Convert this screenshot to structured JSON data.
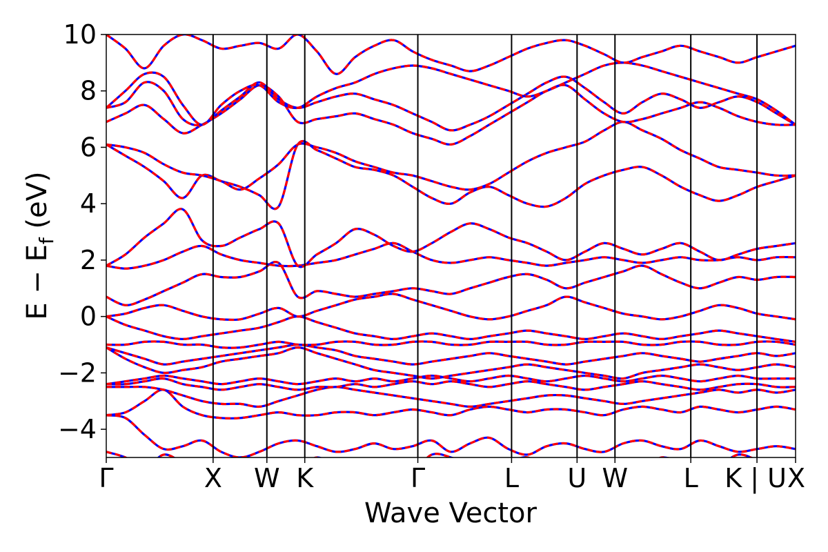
{
  "chart_data": {
    "type": "line",
    "title": "",
    "xlabel": "Wave Vector",
    "ylabel_main": "E − E",
    "ylabel_sub": "f",
    "ylabel_unit": " (eV)",
    "ylim": [
      -5,
      10
    ],
    "xlim": [
      0,
      1
    ],
    "grid": false,
    "legend": "none",
    "y_ticks": [
      {
        "value": -4,
        "label": "−4"
      },
      {
        "value": -2,
        "label": "−2"
      },
      {
        "value": 0,
        "label": "0"
      },
      {
        "value": 2,
        "label": "2"
      },
      {
        "value": 4,
        "label": "4"
      },
      {
        "value": 6,
        "label": "6"
      },
      {
        "value": 8,
        "label": "8"
      },
      {
        "value": 10,
        "label": "10"
      }
    ],
    "high_symmetry_points": [
      {
        "x": 0.0,
        "label": "Γ"
      },
      {
        "x": 0.155,
        "label": "X"
      },
      {
        "x": 0.233,
        "label": "W"
      },
      {
        "x": 0.288,
        "label": "K"
      },
      {
        "x": 0.452,
        "label": "Γ"
      },
      {
        "x": 0.588,
        "label": "L"
      },
      {
        "x": 0.683,
        "label": "U"
      },
      {
        "x": 0.738,
        "label": "W"
      },
      {
        "x": 0.848,
        "label": "L"
      },
      {
        "x": 0.944,
        "label": "K | U"
      },
      {
        "x": 1.0,
        "label": "X"
      }
    ],
    "series_styles": [
      {
        "color": "#0000ff",
        "dash": "solid",
        "width": 3.2
      },
      {
        "color": "#ff0000",
        "dash": "8,5",
        "width": 3.2
      }
    ],
    "bands": [
      [
        -4.8,
        -5.0,
        -5.4,
        -4.9,
        -5.2,
        -5.6,
        -5.4,
        -5.0,
        -5.2,
        -5.6,
        -5.4,
        -5.0,
        -5.3,
        -5.2,
        -5.1,
        -5.3,
        -5.5,
        -4.9,
        -5.0,
        -5.3,
        -5.6,
        -5.2,
        -5.0,
        -5.4,
        -5.5,
        -5.3,
        -5.1,
        -5.2,
        -5.4,
        -5.0,
        -5.2,
        -5.5,
        -5.3,
        -4.9,
        -5.1,
        -5.4,
        -5.2
      ],
      [
        -3.5,
        -3.6,
        -4.2,
        -4.7,
        -4.6,
        -4.4,
        -4.8,
        -5.0,
        -4.8,
        -4.5,
        -4.4,
        -4.6,
        -4.8,
        -4.7,
        -4.5,
        -4.7,
        -4.6,
        -4.4,
        -4.8,
        -4.5,
        -4.3,
        -4.7,
        -4.9,
        -4.6,
        -4.5,
        -4.7,
        -4.8,
        -4.5,
        -4.4,
        -4.6,
        -4.7,
        -4.4,
        -4.6,
        -4.8,
        -4.7,
        -4.6,
        -4.7
      ],
      [
        -3.5,
        -3.4,
        -3.0,
        -2.6,
        -3.2,
        -3.5,
        -3.6,
        -3.6,
        -3.5,
        -3.4,
        -3.5,
        -3.5,
        -3.4,
        -3.4,
        -3.5,
        -3.4,
        -3.3,
        -3.4,
        -3.5,
        -3.3,
        -3.2,
        -3.3,
        -3.4,
        -3.3,
        -3.3,
        -3.4,
        -3.5,
        -3.3,
        -3.2,
        -3.3,
        -3.4,
        -3.2,
        -3.3,
        -3.4,
        -3.3,
        -3.2,
        -3.3
      ],
      [
        -2.5,
        -2.5,
        -2.5,
        -2.6,
        -2.8,
        -3.0,
        -3.1,
        -3.1,
        -3.2,
        -3.0,
        -2.8,
        -2.6,
        -2.5,
        -2.6,
        -2.7,
        -2.8,
        -2.9,
        -3.0,
        -3.1,
        -3.2,
        -3.1,
        -3.0,
        -2.9,
        -2.8,
        -2.8,
        -2.9,
        -3.0,
        -3.1,
        -3.0,
        -2.9,
        -2.8,
        -2.7,
        -2.6,
        -2.7,
        -2.6,
        -2.7,
        -2.6
      ],
      [
        -2.4,
        -2.4,
        -2.3,
        -2.2,
        -2.4,
        -2.5,
        -2.6,
        -2.5,
        -2.4,
        -2.5,
        -2.6,
        -2.5,
        -2.5,
        -2.4,
        -2.5,
        -2.4,
        -2.3,
        -2.4,
        -2.3,
        -2.4,
        -2.5,
        -2.4,
        -2.3,
        -2.4,
        -2.5,
        -2.6,
        -2.5,
        -2.4,
        -2.3,
        -2.4,
        -2.5,
        -2.6,
        -2.5,
        -2.4,
        -2.4,
        -2.5,
        -2.5
      ],
      [
        -2.4,
        -2.3,
        -2.2,
        -2.1,
        -2.2,
        -2.3,
        -2.4,
        -2.3,
        -2.2,
        -2.3,
        -2.4,
        -2.3,
        -2.2,
        -2.3,
        -2.2,
        -2.3,
        -2.2,
        -2.1,
        -2.2,
        -2.3,
        -2.2,
        -2.1,
        -2.2,
        -2.3,
        -2.2,
        -2.1,
        -2.2,
        -2.3,
        -2.2,
        -2.1,
        -2.2,
        -2.3,
        -2.2,
        -2.1,
        -2.2,
        -2.2,
        -2.2
      ],
      [
        -1.1,
        -1.5,
        -1.8,
        -2.0,
        -1.9,
        -1.8,
        -1.6,
        -1.5,
        -1.4,
        -1.3,
        -1.1,
        -1.3,
        -1.5,
        -1.7,
        -1.9,
        -2.0,
        -2.1,
        -2.2,
        -2.1,
        -2.0,
        -1.9,
        -1.8,
        -1.7,
        -1.8,
        -1.9,
        -2.0,
        -2.1,
        -2.2,
        -2.0,
        -1.9,
        -1.8,
        -1.7,
        -1.8,
        -1.9,
        -1.8,
        -1.7,
        -1.8
      ],
      [
        -1.1,
        -1.3,
        -1.5,
        -1.7,
        -1.6,
        -1.5,
        -1.4,
        -1.3,
        -1.2,
        -1.1,
        -1.0,
        -1.1,
        -1.2,
        -1.4,
        -1.5,
        -1.6,
        -1.7,
        -1.6,
        -1.5,
        -1.4,
        -1.3,
        -1.4,
        -1.5,
        -1.6,
        -1.7,
        -1.6,
        -1.5,
        -1.4,
        -1.3,
        -1.4,
        -1.5,
        -1.6,
        -1.5,
        -1.4,
        -1.3,
        -1.4,
        -1.3
      ],
      [
        -1.0,
        -1.0,
        -0.9,
        -0.9,
        -1.0,
        -1.0,
        -1.1,
        -1.1,
        -1.0,
        -0.9,
        -1.0,
        -1.0,
        -0.9,
        -0.9,
        -1.0,
        -1.0,
        -0.9,
        -0.9,
        -1.0,
        -1.0,
        -0.9,
        -0.9,
        -0.9,
        -1.0,
        -1.0,
        -0.9,
        -0.9,
        -0.9,
        -1.0,
        -1.0,
        -0.9,
        -0.9,
        -1.0,
        -1.0,
        -0.9,
        -0.9,
        -1.0
      ],
      [
        0.0,
        -0.3,
        -0.5,
        -0.7,
        -0.8,
        -0.7,
        -0.6,
        -0.5,
        -0.4,
        -0.2,
        0.0,
        -0.2,
        -0.4,
        -0.6,
        -0.7,
        -0.8,
        -0.7,
        -0.6,
        -0.7,
        -0.8,
        -0.7,
        -0.6,
        -0.5,
        -0.6,
        -0.7,
        -0.8,
        -0.7,
        -0.6,
        -0.7,
        -0.8,
        -0.7,
        -0.6,
        -0.5,
        -0.6,
        -0.7,
        -0.8,
        -0.9
      ],
      [
        0.0,
        0.1,
        0.3,
        0.4,
        0.2,
        0.0,
        -0.1,
        -0.1,
        0.1,
        0.3,
        0.0,
        0.2,
        0.4,
        0.6,
        0.7,
        0.8,
        0.6,
        0.4,
        0.2,
        0.0,
        -0.1,
        0.0,
        0.2,
        0.4,
        0.7,
        0.5,
        0.3,
        0.1,
        0.0,
        -0.1,
        0.0,
        0.2,
        0.4,
        0.3,
        0.1,
        0.0,
        -0.1
      ],
      [
        0.7,
        0.4,
        0.6,
        0.9,
        1.2,
        1.5,
        1.4,
        1.4,
        1.6,
        1.9,
        0.7,
        0.9,
        0.8,
        0.7,
        0.8,
        0.9,
        1.0,
        0.9,
        0.8,
        1.0,
        1.2,
        1.4,
        1.5,
        1.3,
        1.0,
        1.2,
        1.4,
        1.6,
        1.8,
        1.5,
        1.2,
        1.0,
        1.2,
        1.4,
        1.3,
        1.4,
        1.4
      ],
      [
        1.8,
        1.7,
        1.8,
        2.0,
        2.3,
        2.5,
        2.2,
        2.0,
        1.9,
        1.8,
        1.8,
        1.9,
        2.0,
        2.2,
        2.4,
        2.6,
        2.3,
        2.0,
        1.9,
        2.0,
        2.1,
        2.0,
        1.9,
        1.8,
        1.9,
        2.0,
        2.1,
        2.0,
        1.9,
        2.0,
        2.1,
        2.0,
        2.0,
        2.1,
        2.0,
        2.1,
        2.1
      ],
      [
        1.8,
        2.2,
        2.8,
        3.3,
        3.8,
        2.7,
        2.5,
        2.8,
        3.1,
        3.3,
        1.8,
        2.2,
        2.6,
        3.1,
        2.9,
        2.5,
        2.3,
        2.6,
        3.0,
        3.3,
        3.1,
        2.8,
        2.6,
        2.3,
        2.0,
        2.3,
        2.6,
        2.4,
        2.2,
        2.4,
        2.6,
        2.3,
        2.0,
        2.2,
        2.4,
        2.5,
        2.6
      ],
      [
        6.1,
        5.7,
        5.3,
        4.8,
        4.2,
        5.0,
        4.8,
        4.6,
        4.3,
        3.9,
        6.1,
        5.9,
        5.6,
        5.3,
        5.2,
        5.0,
        4.6,
        4.2,
        4.0,
        4.4,
        4.6,
        4.3,
        4.0,
        3.9,
        4.2,
        4.7,
        5.0,
        5.2,
        5.3,
        5.0,
        4.6,
        4.3,
        4.1,
        4.3,
        4.6,
        4.8,
        5.0
      ],
      [
        6.1,
        6.0,
        5.8,
        5.4,
        5.1,
        5.0,
        4.8,
        4.5,
        4.9,
        5.4,
        6.1,
        6.0,
        5.8,
        5.5,
        5.3,
        5.1,
        5.0,
        4.8,
        4.6,
        4.5,
        4.7,
        5.1,
        5.5,
        5.8,
        6.0,
        6.2,
        6.6,
        6.9,
        6.6,
        6.3,
        5.9,
        5.6,
        5.3,
        5.2,
        5.1,
        5.0,
        5.0
      ],
      [
        6.9,
        7.2,
        7.5,
        7.0,
        6.5,
        6.8,
        7.2,
        7.7,
        8.2,
        7.8,
        6.9,
        7.0,
        7.1,
        7.2,
        7.0,
        6.8,
        6.5,
        6.3,
        6.1,
        6.4,
        6.8,
        7.2,
        7.6,
        8.0,
        8.2,
        7.7,
        7.2,
        6.9,
        7.0,
        7.2,
        7.4,
        7.6,
        7.4,
        7.1,
        6.9,
        6.8,
        6.8
      ],
      [
        7.4,
        7.6,
        8.3,
        8.0,
        7.0,
        6.8,
        7.3,
        7.8,
        8.3,
        7.7,
        7.4,
        7.6,
        7.8,
        7.9,
        7.7,
        7.5,
        7.2,
        6.9,
        6.6,
        6.8,
        7.1,
        7.5,
        7.9,
        8.3,
        8.5,
        8.1,
        7.6,
        7.2,
        7.6,
        7.9,
        7.7,
        7.4,
        7.6,
        7.8,
        7.6,
        7.2,
        6.8
      ],
      [
        7.4,
        8.0,
        8.6,
        8.5,
        7.5,
        6.8,
        7.5,
        8.0,
        8.2,
        7.6,
        7.4,
        7.8,
        8.1,
        8.3,
        8.6,
        8.8,
        8.9,
        8.8,
        8.6,
        8.4,
        8.2,
        8.0,
        7.8,
        8.0,
        8.3,
        8.6,
        8.9,
        9.0,
        8.9,
        8.7,
        8.5,
        8.3,
        8.1,
        7.9,
        7.7,
        7.3,
        6.8
      ],
      [
        10.0,
        9.5,
        8.8,
        9.6,
        10.0,
        9.8,
        9.5,
        9.6,
        9.7,
        9.5,
        10.0,
        9.4,
        8.6,
        9.2,
        9.6,
        9.8,
        9.4,
        9.1,
        8.9,
        8.7,
        8.9,
        9.2,
        9.5,
        9.7,
        9.8,
        9.6,
        9.3,
        9.0,
        9.2,
        9.4,
        9.6,
        9.4,
        9.2,
        9.0,
        9.2,
        9.4,
        9.6
      ]
    ]
  }
}
